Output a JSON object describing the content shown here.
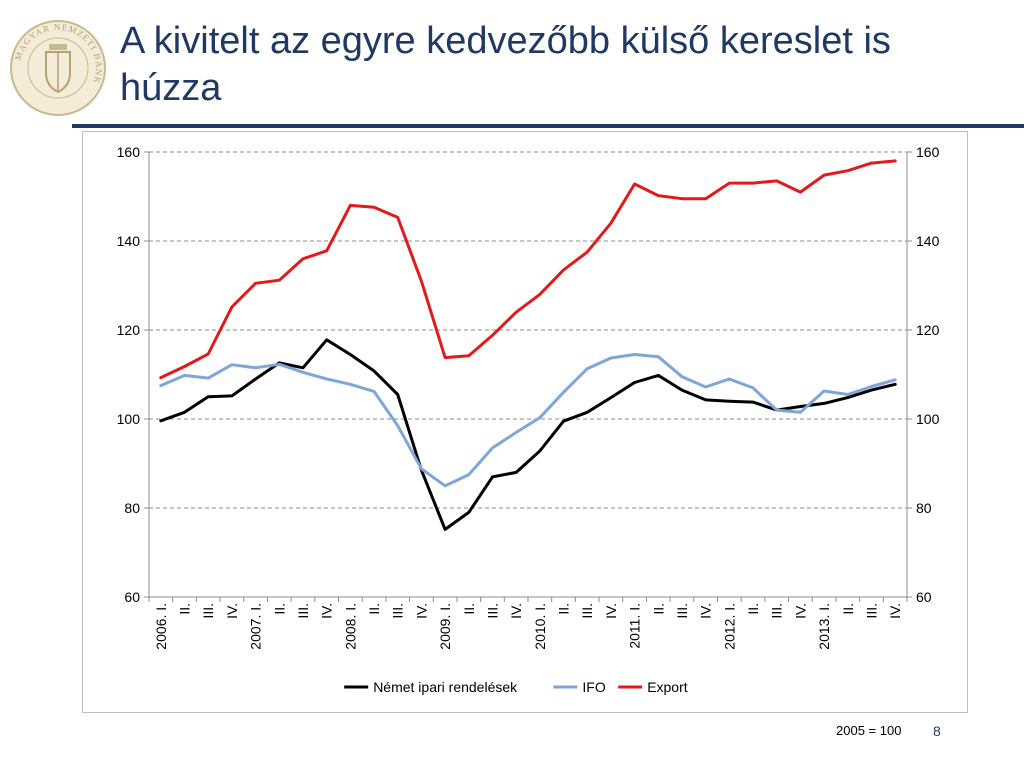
{
  "header": {
    "title": "A kivitelt az egyre kedvezőbb külső kereslet is húzza",
    "logo_text": "MAGYAR NEMZETI BANK"
  },
  "footer": {
    "base_note": "2005 = 100",
    "page_number": "8"
  },
  "colors": {
    "title": "#1f3864",
    "nemet": "#000000",
    "ifo": "#7ea6d8",
    "export": "#e31a1c"
  },
  "chart_data": {
    "type": "line",
    "x_tick_labels": [
      "2006. I.",
      "II.",
      "III.",
      "IV.",
      "2007. I.",
      "II.",
      "III.",
      "IV.",
      "2008. I.",
      "II.",
      "III.",
      "IV.",
      "2009. I.",
      "II.",
      "III.",
      "IV.",
      "2010. I.",
      "II.",
      "III.",
      "IV.",
      "2011. I.",
      "II.",
      "III.",
      "IV.",
      "2012. I.",
      "II.",
      "III.",
      "IV.",
      "2013. I.",
      "II.",
      "III.",
      "IV."
    ],
    "ylim": [
      60,
      160
    ],
    "y_ticks": [
      "60",
      "80",
      "100",
      "120",
      "140",
      "160"
    ],
    "y2_ticks": [
      "60",
      "80",
      "100",
      "120",
      "140",
      "160"
    ],
    "grid": "horizontal dashed",
    "legend_position": "bottom",
    "series": [
      {
        "name": "Német ipari rendelések",
        "color": "#000000",
        "values": [
          99.6,
          101.5,
          105,
          105.2,
          109,
          112.6,
          111.5,
          117.8,
          114.5,
          110.8,
          105.5,
          88.5,
          75.2,
          79,
          87,
          88,
          92.8,
          99.5,
          101.5,
          104.8,
          108.2,
          109.8,
          106.5,
          104.3,
          104,
          103.8,
          102,
          102.8,
          103.5,
          104.8,
          106.5,
          107.8
        ]
      },
      {
        "name": "IFO",
        "color": "#7ea6d8",
        "values": [
          107.5,
          109.8,
          109.2,
          112.2,
          111.5,
          112.3,
          110.5,
          109,
          107.8,
          106.2,
          98.5,
          88.8,
          85,
          87.5,
          93.5,
          97,
          100.3,
          106,
          111.3,
          113.7,
          114.5,
          114,
          109.5,
          107.2,
          109,
          107,
          102,
          101.5,
          106.3,
          105.5,
          107.3,
          108.8
        ]
      },
      {
        "name": "Export",
        "color": "#e31a1c",
        "values": [
          109.3,
          111.8,
          114.6,
          125.2,
          130.5,
          131.2,
          136,
          137.8,
          148,
          147.6,
          145.3,
          131,
          113.8,
          114.2,
          118.8,
          124,
          128,
          133.5,
          137.5,
          144,
          152.8,
          150.2,
          149.5,
          149.5,
          153,
          153,
          153.5,
          151,
          154.8,
          155.8,
          157.5,
          158
        ]
      }
    ]
  }
}
